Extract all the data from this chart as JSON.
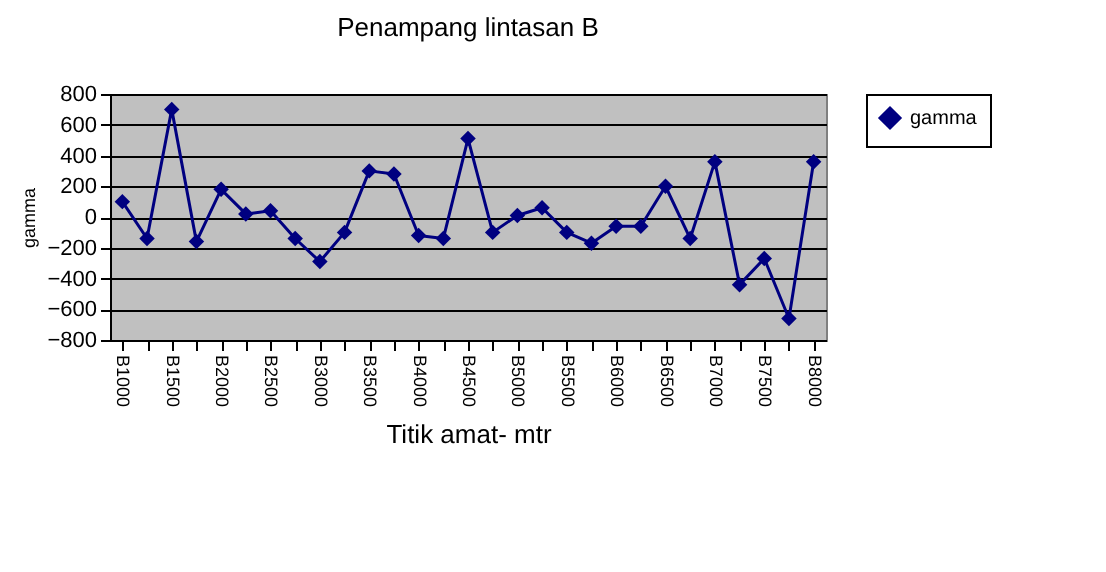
{
  "chart_data": {
    "type": "line",
    "title": "Penampang lintasan B",
    "xlabel": "Titik amat- mtr",
    "ylabel": "gamma",
    "categories": [
      "B1000",
      null,
      "B1500",
      null,
      "B2000",
      null,
      "B2500",
      null,
      "B3000",
      null,
      "B3500",
      null,
      "B4000",
      null,
      "B4500",
      null,
      "B5000",
      null,
      "B5500",
      null,
      "B6000",
      null,
      "B6500",
      null,
      "B7000",
      null,
      "B7500",
      null,
      "B8000"
    ],
    "series": [
      {
        "name": "gamma",
        "color": "#000080",
        "values": [
          100,
          -140,
          700,
          -160,
          180,
          20,
          40,
          -140,
          -290,
          -100,
          300,
          280,
          -120,
          -140,
          510,
          -100,
          10,
          60,
          -100,
          -170,
          -60,
          -60,
          200,
          -140,
          360,
          -440,
          -270,
          -660,
          360
        ]
      }
    ],
    "ylim": [
      -800,
      800
    ],
    "yticks": [
      -800,
      -600,
      -400,
      -200,
      0,
      200,
      400,
      600,
      800
    ],
    "grid": "y",
    "legend": "right",
    "marker": "diamond",
    "line_style": "solid"
  }
}
